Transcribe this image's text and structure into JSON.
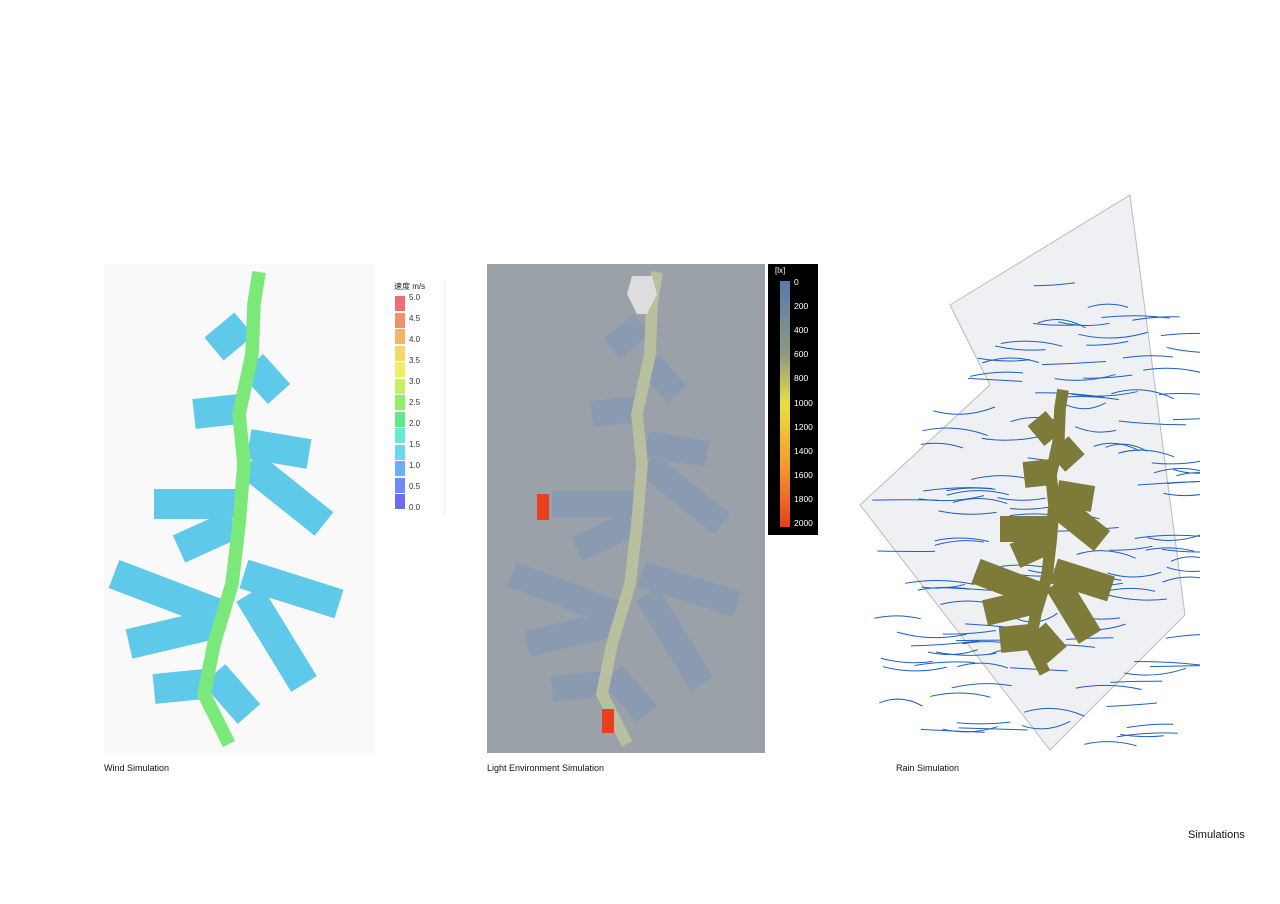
{
  "panels": {
    "wind": {
      "caption": "Wind Simulation",
      "legend": {
        "title": "速度 m/s",
        "labels": [
          "5.0",
          "4.5",
          "4.0",
          "3.5",
          "3.0",
          "2.5",
          "2.0",
          "1.5",
          "1.0",
          "0.5",
          "0.0"
        ],
        "colors": [
          "#f26d6d",
          "#f5916a",
          "#f6b46a",
          "#f5d86a",
          "#eef060",
          "#c6f060",
          "#8ef064",
          "#5fe888",
          "#63ecd0",
          "#6ad6f4",
          "#6ab0f4",
          "#6a8cf4",
          "#6a6cf4"
        ]
      }
    },
    "light": {
      "caption": "Light Environment Simulation",
      "legend": {
        "title": "[lx]",
        "labels": [
          "0",
          "200",
          "400",
          "600",
          "800",
          "1000",
          "1200",
          "1400",
          "1600",
          "1800",
          "2000"
        ]
      }
    },
    "rain": {
      "caption": "Rain Simulation"
    }
  },
  "page_title": "Simulations",
  "colors": {
    "wind_base": "#5ec9e8",
    "wind_path": "#7be87a",
    "light_base": "#8a9ab0",
    "light_hot": "#e8401c",
    "rain_lines": "#1e5fc0",
    "rain_building": "#7d7a3a"
  }
}
